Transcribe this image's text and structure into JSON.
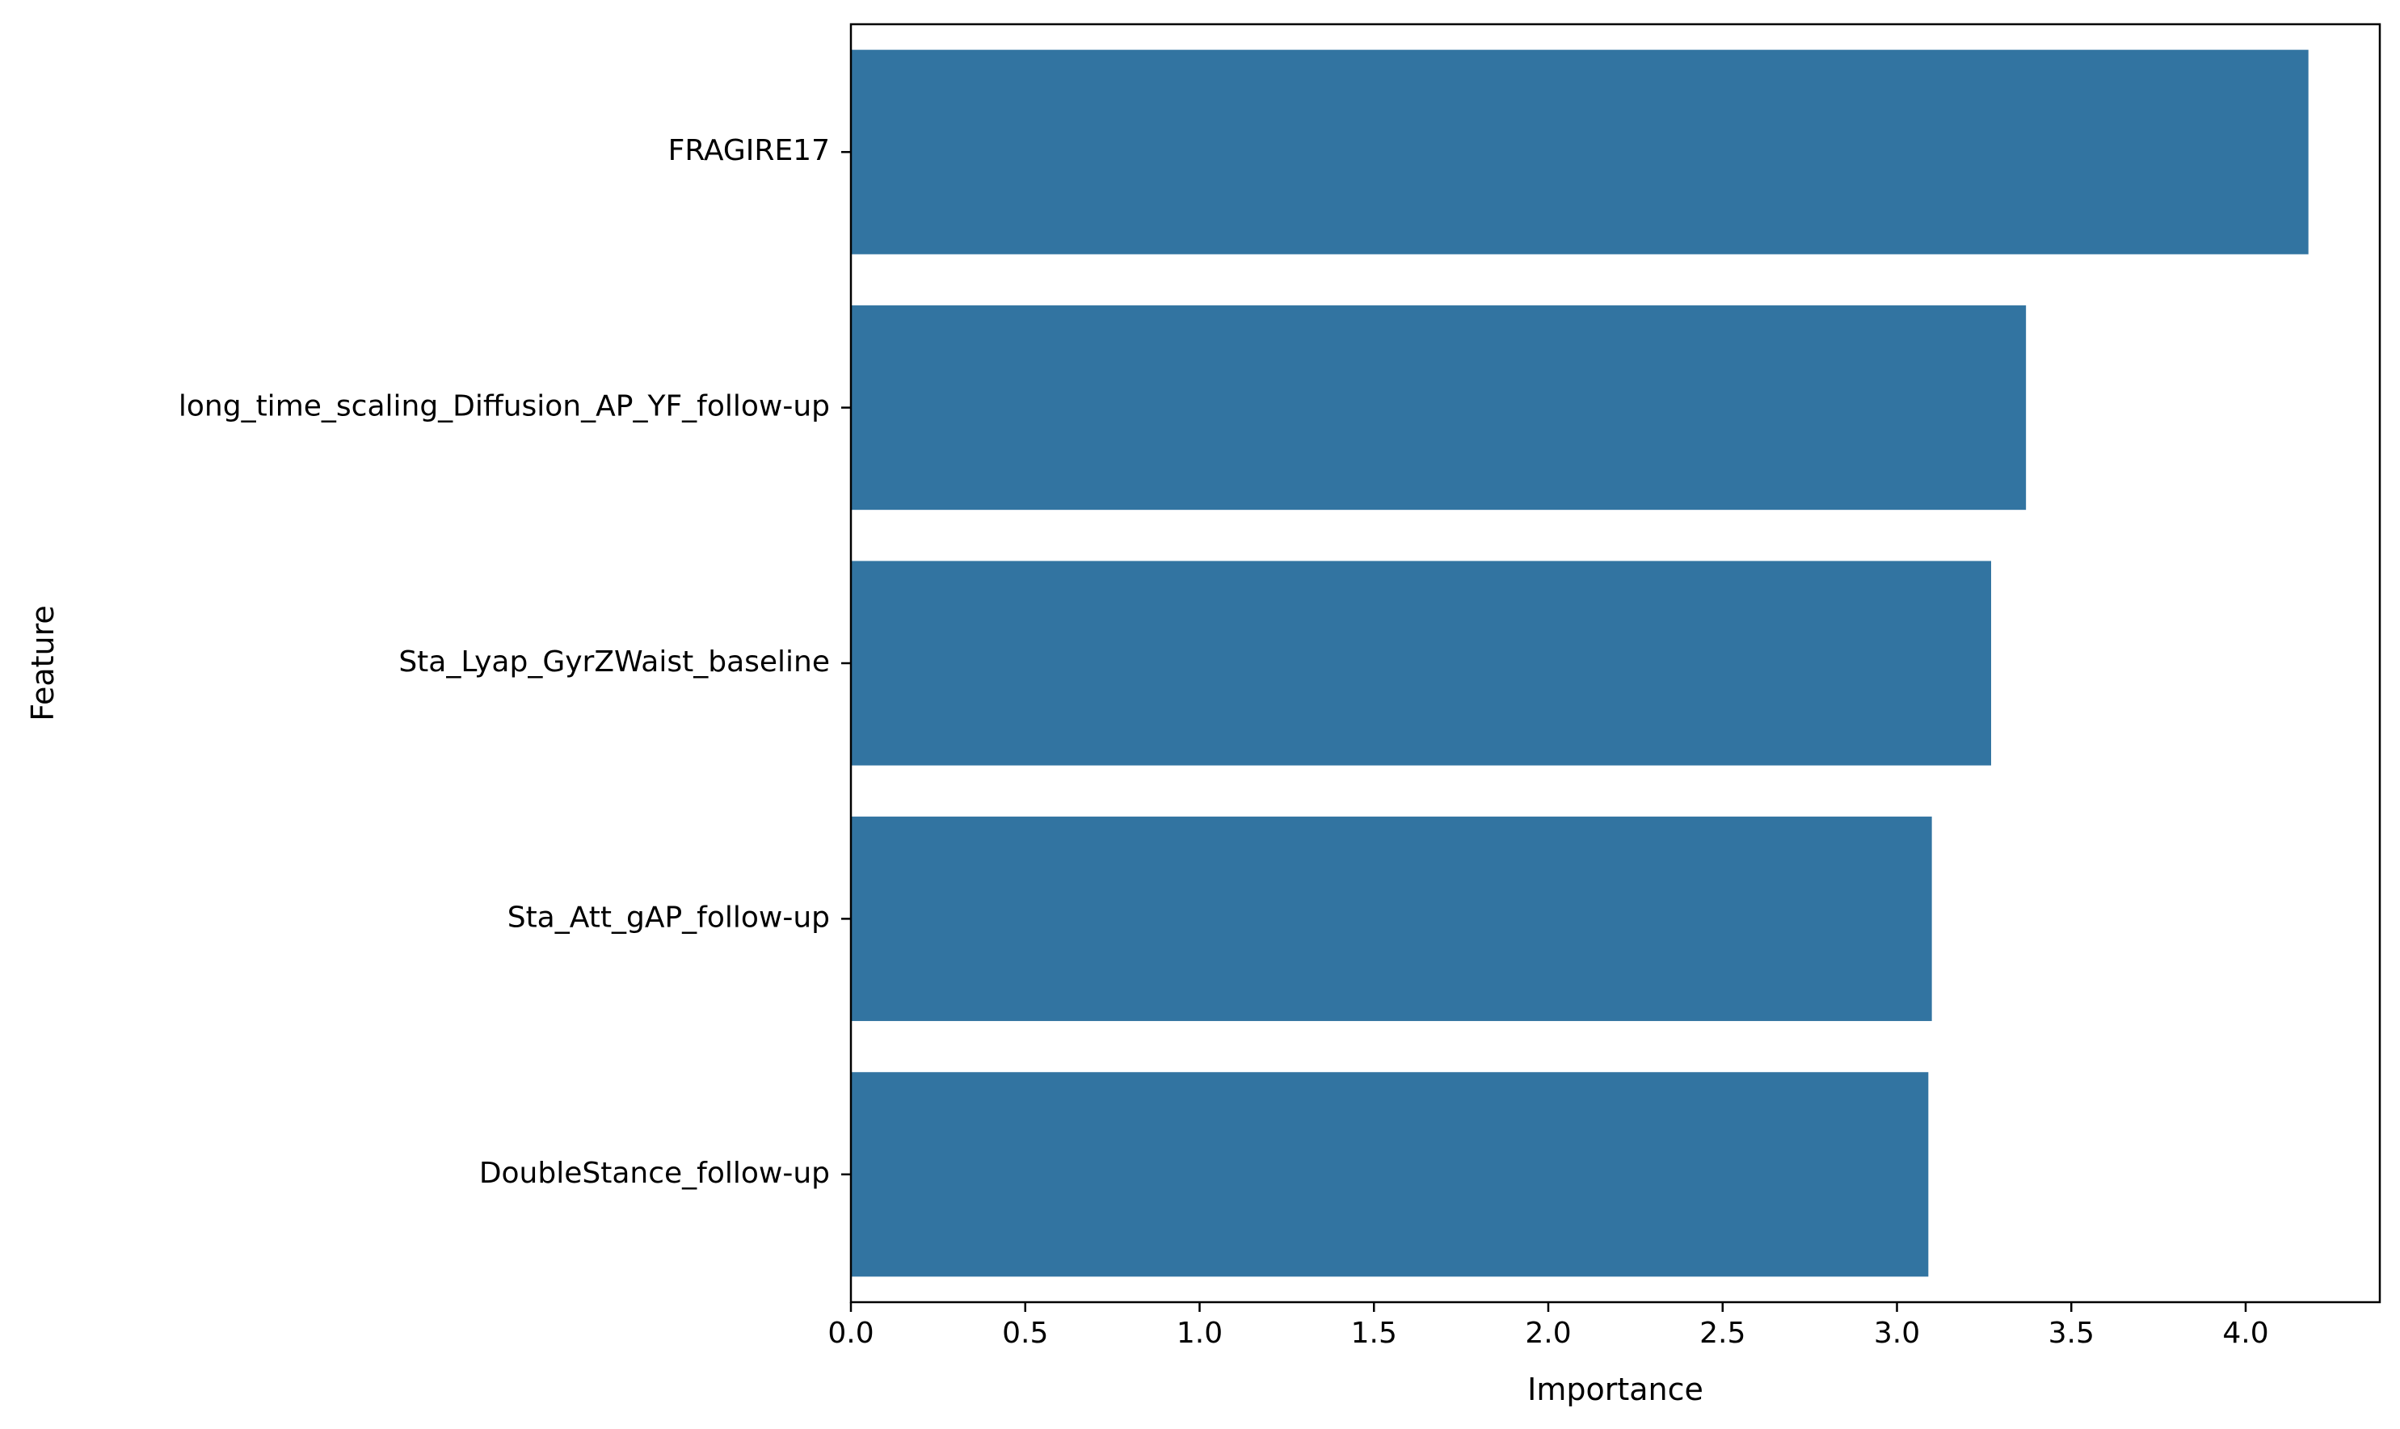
{
  "chart_data": {
    "type": "bar",
    "orientation": "horizontal",
    "categories": [
      "FRAGIRE17",
      "long_time_scaling_Diffusion_AP_YF_follow-up",
      "Sta_Lyap_GyrZWaist_baseline",
      "Sta_Att_gAP_follow-up",
      "DoubleStance_follow-up"
    ],
    "values": [
      4.18,
      3.37,
      3.27,
      3.1,
      3.09
    ],
    "xlabel": "Importance",
    "ylabel": "Feature",
    "xlim": [
      0,
      4.38
    ],
    "xticks": [
      "0.0",
      "0.5",
      "1.0",
      "1.5",
      "2.0",
      "2.5",
      "3.0",
      "3.5",
      "4.0"
    ],
    "bar_color": "#3274a1",
    "grid": false,
    "legend": "none"
  }
}
